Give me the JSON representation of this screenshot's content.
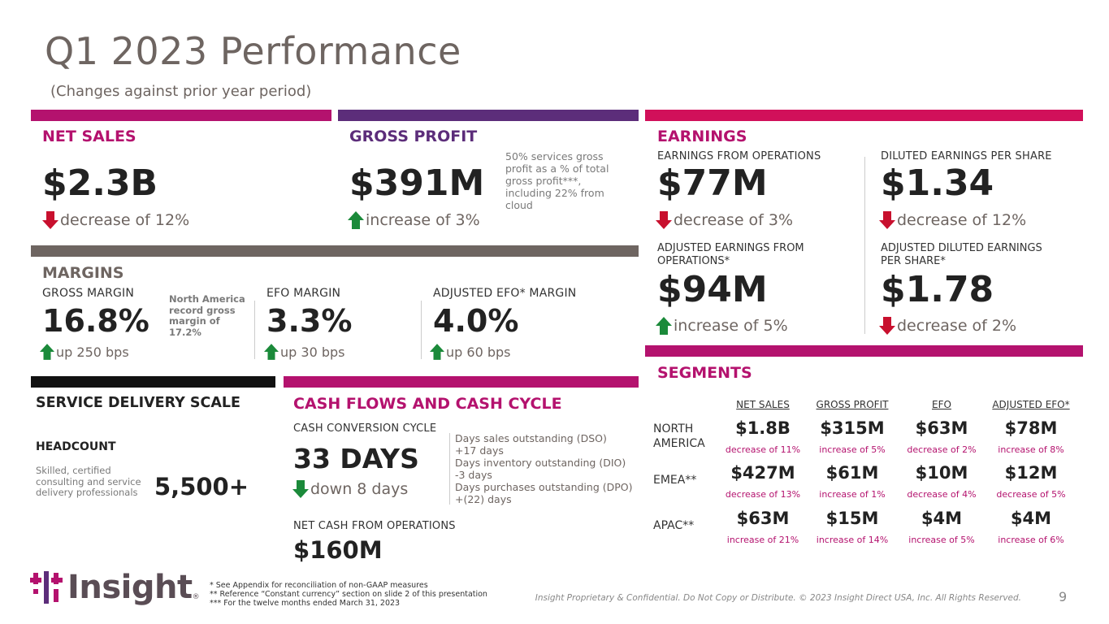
{
  "title": "Q1 2023 Performance",
  "subtitle": "(Changes against prior year period)",
  "colors": {
    "magenta": "#b4126e",
    "purple": "#5c2d7a",
    "crimson": "#d1105a",
    "taupe": "#6e6561",
    "black": "#111111",
    "up": "#1b8a3a",
    "down": "#c8102e"
  },
  "net_sales": {
    "heading": "NET SALES",
    "value": "$2.3B",
    "change": "decrease of 12%",
    "direction": "down"
  },
  "gross_profit": {
    "heading": "GROSS PROFIT",
    "value": "$391M",
    "change": "increase of 3%",
    "direction": "up",
    "note": "50% services gross profit as a % of total gross profit***, including 22% from cloud"
  },
  "earnings": {
    "heading": "EARNINGS",
    "efo": {
      "label": "EARNINGS FROM OPERATIONS",
      "value": "$77M",
      "change": "decrease of 3%",
      "direction": "down"
    },
    "deps": {
      "label": "DILUTED EARNINGS PER SHARE",
      "value": "$1.34",
      "change": "decrease of 12%",
      "direction": "down"
    },
    "adj_efo": {
      "label": "ADJUSTED EARNINGS FROM OPERATIONS*",
      "value": "$94M",
      "change": "increase of 5%",
      "direction": "up"
    },
    "adj_deps": {
      "label": "ADJUSTED DILUTED EARNINGS PER SHARE*",
      "value": "$1.78",
      "change": "decrease of 2%",
      "direction": "down"
    }
  },
  "margins": {
    "heading": "MARGINS",
    "gross": {
      "label": "GROSS MARGIN",
      "value": "16.8%",
      "change": "up 250 bps",
      "direction": "up"
    },
    "gross_note": "North America record gross margin of 17.2%",
    "efo": {
      "label": "EFO MARGIN",
      "value": "3.3%",
      "change": "up 30 bps",
      "direction": "up"
    },
    "adj_efo": {
      "label": "ADJUSTED EFO* MARGIN",
      "value": "4.0%",
      "change": "up 60 bps",
      "direction": "up"
    }
  },
  "service": {
    "heading": "SERVICE DELIVERY SCALE",
    "headcount_label": "HEADCOUNT",
    "headcount_desc": "Skilled, certified consulting and service delivery professionals",
    "headcount_value": "5,500+"
  },
  "cash": {
    "heading": "CASH FLOWS AND CASH CYCLE",
    "ccc_label": "CASH CONVERSION CYCLE",
    "ccc_value": "33 DAYS",
    "ccc_change": "down 8 days",
    "direction": "down",
    "details": [
      "Days sales outstanding (DSO)",
      "+17 days",
      "Days inventory outstanding (DIO)",
      "-3 days",
      "Days purchases outstanding (DPO)",
      "+(22) days"
    ],
    "ncfo_label": "NET CASH FROM OPERATIONS",
    "ncfo_value": "$160M"
  },
  "segments": {
    "heading": "SEGMENTS",
    "columns": [
      "NET SALES",
      "GROSS PROFIT",
      "EFO",
      "ADJUSTED EFO*"
    ],
    "rows": [
      {
        "region": "NORTH AMERICA",
        "values": [
          "$1.8B",
          "$315M",
          "$63M",
          "$78M"
        ],
        "changes": [
          "decrease of 11%",
          "increase of 5%",
          "decrease of 2%",
          "increase of 8%"
        ]
      },
      {
        "region": "EMEA**",
        "values": [
          "$427M",
          "$61M",
          "$10M",
          "$12M"
        ],
        "changes": [
          "decrease of 13%",
          "increase of 1%",
          "decrease of 4%",
          "decrease of 5%"
        ]
      },
      {
        "region": "APAC**",
        "values": [
          "$63M",
          "$15M",
          "$4M",
          "$4M"
        ],
        "changes": [
          "increase of 21%",
          "increase of 14%",
          "increase of 5%",
          "increase of 6%"
        ]
      }
    ]
  },
  "footnotes": [
    "*  See Appendix for reconciliation of non-GAAP measures",
    "** Reference “Constant currency” section on slide 2 of this presentation",
    "*** For the twelve months ended March 31, 2023"
  ],
  "logo_text": "Insight",
  "logo_mark": "®",
  "confidential": "Insight Proprietary & Confidential. Do Not Copy or Distribute. © 2023 Insight Direct USA, Inc. All Rights Reserved.",
  "page_number": "9"
}
